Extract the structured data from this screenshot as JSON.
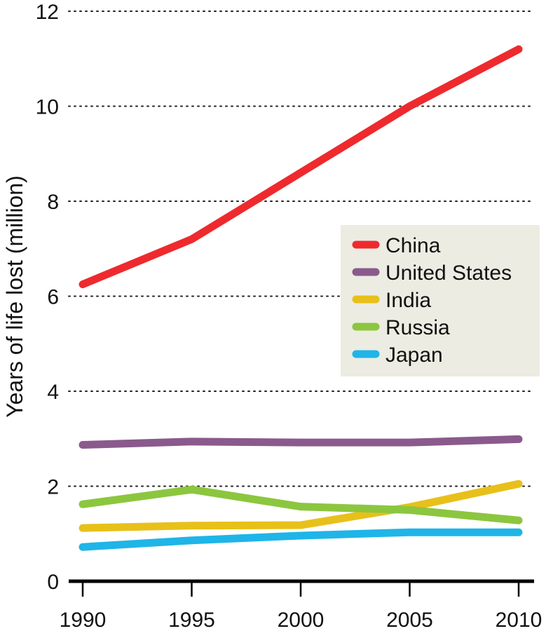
{
  "chart_data": {
    "type": "line",
    "title": "",
    "xlabel": "",
    "ylabel": "Years of life lost (million)",
    "x": [
      1990,
      1995,
      2000,
      2005,
      2010
    ],
    "x_tick_labels": [
      "1990",
      "1995",
      "2000",
      "2005",
      "2010"
    ],
    "y_ticks": [
      0,
      2,
      4,
      6,
      8,
      10,
      12
    ],
    "y_tick_labels": [
      "0",
      "2",
      "4",
      "6",
      "8",
      "10",
      "12"
    ],
    "xlim": [
      1990,
      2010
    ],
    "ylim": [
      0,
      12
    ],
    "grid": "horizontal-dotted",
    "legend_position": "right-middle",
    "legend_background": "#ecece2",
    "series": [
      {
        "name": "China",
        "color": "#ee2a2e",
        "values": [
          6.25,
          7.2,
          8.6,
          10.0,
          11.2
        ]
      },
      {
        "name": "United States",
        "color": "#8a5a8c",
        "values": [
          2.87,
          2.94,
          2.92,
          2.92,
          2.99
        ]
      },
      {
        "name": "India",
        "color": "#e8c01a",
        "values": [
          1.12,
          1.17,
          1.18,
          1.56,
          2.05
        ]
      },
      {
        "name": "Russia",
        "color": "#8cc63f",
        "values": [
          1.62,
          1.93,
          1.57,
          1.5,
          1.28
        ]
      },
      {
        "name": "Japan",
        "color": "#1fb5e8",
        "values": [
          0.72,
          0.86,
          0.96,
          1.03,
          1.03
        ]
      }
    ]
  }
}
